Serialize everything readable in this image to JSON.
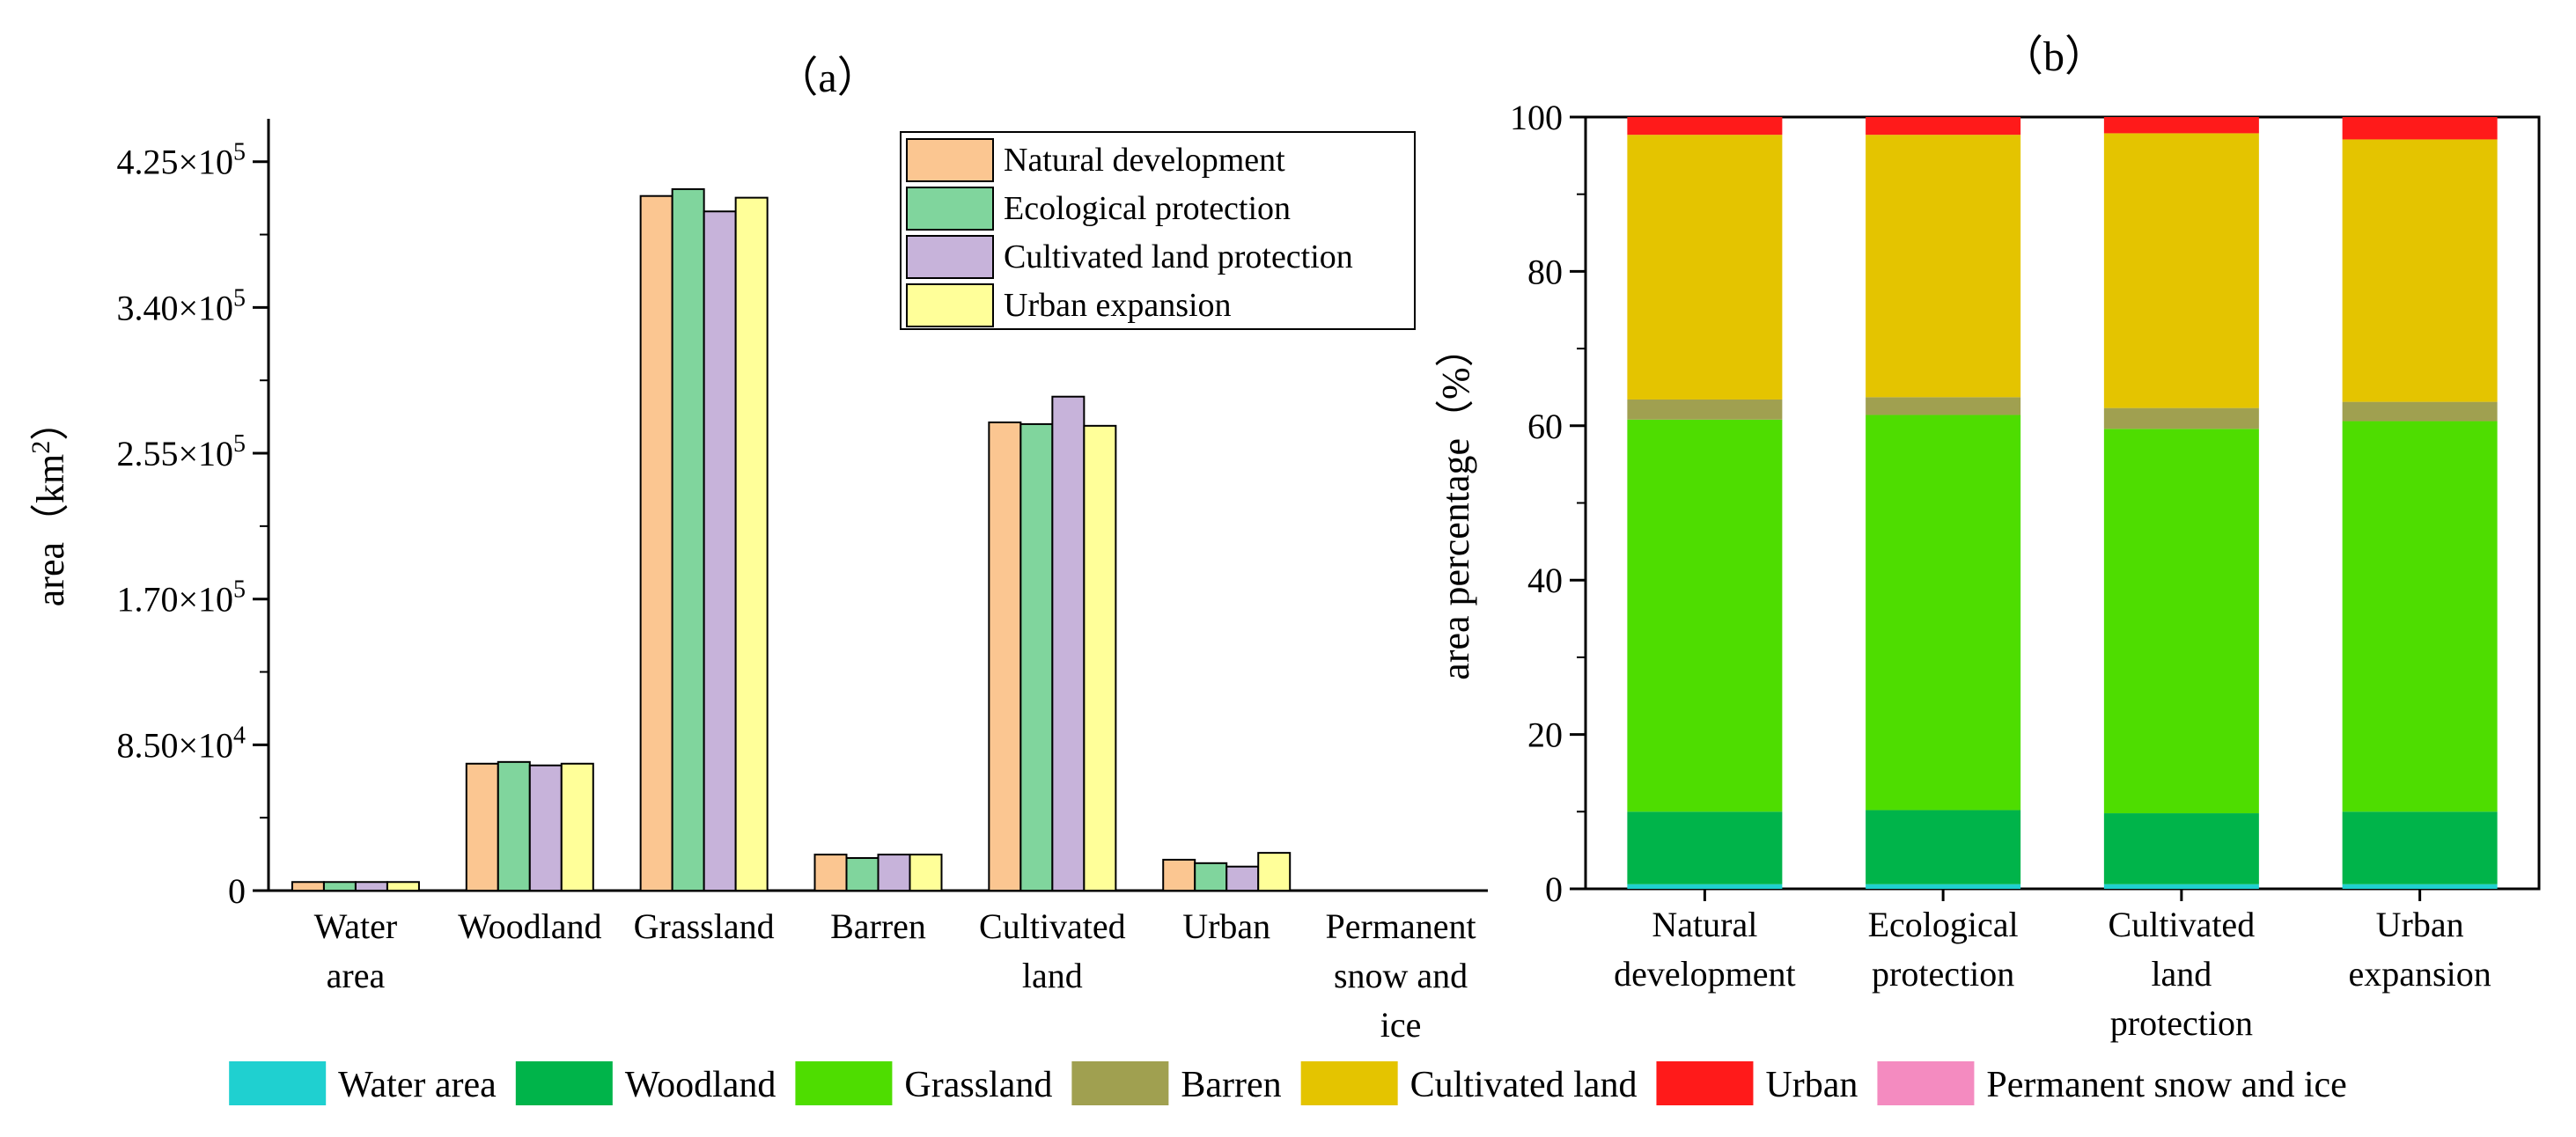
{
  "chart_data": [
    {
      "type": "bar",
      "title": "（a）",
      "ylabel": "area（km²）",
      "ylabel_text": "area（km",
      "ylabel_sup": "2",
      "ylabel_close": "）",
      "ylim": [
        0,
        450000
      ],
      "ytick_values": [
        0,
        85000,
        170000,
        255000,
        340000,
        425000
      ],
      "ytick_labels": [
        {
          "mant": "0",
          "exp": ""
        },
        {
          "mant": "8.50×10",
          "exp": "4"
        },
        {
          "mant": "1.70×10",
          "exp": "5"
        },
        {
          "mant": "2.55×10",
          "exp": "5"
        },
        {
          "mant": "3.40×10",
          "exp": "5"
        },
        {
          "mant": "4.25×10",
          "exp": "5"
        }
      ],
      "categories": [
        [
          "Water",
          "area"
        ],
        [
          "Woodland"
        ],
        [
          "Grassland"
        ],
        [
          "Barren"
        ],
        [
          "Cultivated",
          "land"
        ],
        [
          "Urban"
        ],
        [
          "Permanent",
          "snow and",
          "ice"
        ]
      ],
      "series": [
        {
          "name": "Natural development",
          "color": "#FBC691",
          "values": [
            5000,
            74000,
            405000,
            21000,
            273000,
            18000,
            0
          ]
        },
        {
          "name": "Ecological protection",
          "color": "#80D59D",
          "values": [
            5000,
            75000,
            409000,
            19000,
            272000,
            16000,
            0
          ]
        },
        {
          "name": "Cultivated land protection",
          "color": "#C7B3DA",
          "values": [
            5000,
            73000,
            396000,
            21000,
            288000,
            14000,
            0
          ]
        },
        {
          "name": "Urban expansion",
          "color": "#FFFF99",
          "values": [
            5000,
            74000,
            404000,
            21000,
            271000,
            22000,
            0
          ]
        }
      ],
      "legend_position": "top-right"
    },
    {
      "type": "stacked_bar",
      "title": "（b）",
      "ylabel": "area percentage（%）",
      "ylim": [
        0,
        100
      ],
      "ytick_values": [
        0,
        20,
        40,
        60,
        80,
        100
      ],
      "ytick_labels": [
        "0",
        "20",
        "40",
        "60",
        "80",
        "100"
      ],
      "categories": [
        [
          "Natural",
          "development"
        ],
        [
          "Ecological",
          "protection"
        ],
        [
          "Cultivated",
          "land",
          "protection"
        ],
        [
          "Urban",
          "expansion"
        ]
      ],
      "series": [
        {
          "name": "Water area",
          "color": "#1FD0D0",
          "values": [
            0.6,
            0.6,
            0.6,
            0.6
          ]
        },
        {
          "name": "Woodland",
          "color": "#00B44A",
          "values": [
            9.4,
            9.6,
            9.2,
            9.4
          ]
        },
        {
          "name": "Grassland",
          "color": "#4EDD00",
          "values": [
            50.8,
            51.2,
            49.8,
            50.6
          ]
        },
        {
          "name": "Barren",
          "color": "#A0A050",
          "values": [
            2.6,
            2.3,
            2.7,
            2.5
          ]
        },
        {
          "name": "Cultivated land",
          "color": "#E4C400",
          "values": [
            34.3,
            34.0,
            35.6,
            34.0
          ]
        },
        {
          "name": "Urban",
          "color": "#FF1A1A",
          "values": [
            2.3,
            2.3,
            2.1,
            2.9
          ]
        },
        {
          "name": "Permanent snow and ice",
          "color": "#F48BC0",
          "values": [
            0,
            0,
            0,
            0
          ]
        }
      ],
      "legend_position": "bottom"
    }
  ]
}
